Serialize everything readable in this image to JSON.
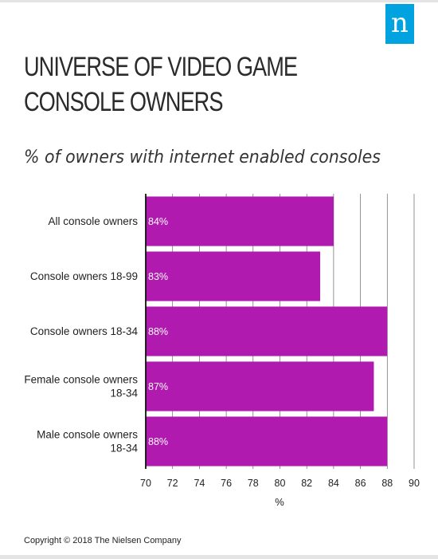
{
  "header": {
    "logo_letter": "n",
    "title": "UNIVERSE OF VIDEO GAME CONSOLE OWNERS",
    "subtitle": "% of owners with internet enabled consoles"
  },
  "footer": {
    "copyright": "Copyright © 2018 The Nielsen Company"
  },
  "colors": {
    "bar": "#b01aaf",
    "logo": "#00a3e0",
    "grid": "#666666"
  },
  "chart_data": {
    "type": "bar",
    "orientation": "horizontal",
    "title": "",
    "xlabel": "%",
    "ylabel": "",
    "xlim": [
      70,
      90
    ],
    "xticks": [
      70,
      72,
      74,
      76,
      78,
      80,
      82,
      84,
      86,
      88,
      90
    ],
    "grid": true,
    "categories": [
      [
        "All console owners"
      ],
      [
        "Console owners 18-99"
      ],
      [
        "Console owners 18-34"
      ],
      [
        "Female console owners",
        "18-34"
      ],
      [
        "Male console owners",
        "18-34"
      ]
    ],
    "values": [
      84,
      83,
      88,
      87,
      88
    ],
    "value_labels": [
      "84%",
      "83%",
      "88%",
      "87%",
      "88%"
    ]
  }
}
